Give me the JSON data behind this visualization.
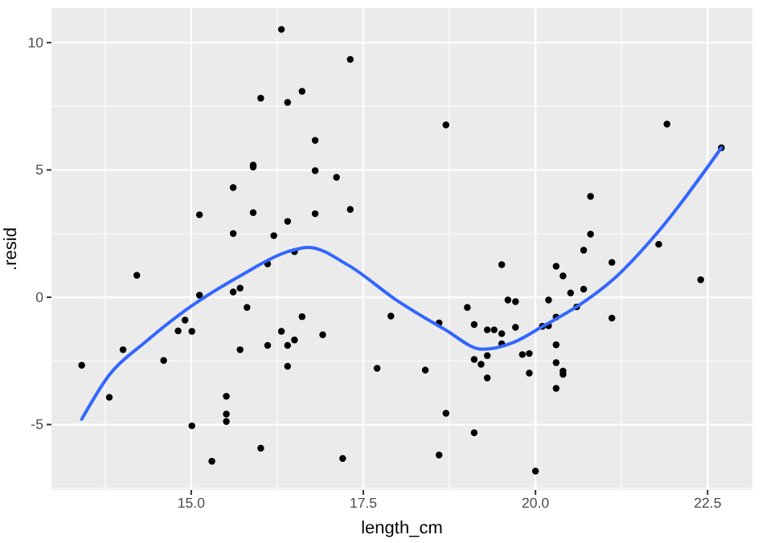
{
  "chart_data": {
    "type": "scatter",
    "xlabel": "length_cm",
    "ylabel": ".resid",
    "xlim": [
      12.97,
      23.15
    ],
    "ylim": [
      -7.57,
      11.36
    ],
    "xticks": [
      {
        "value": 15,
        "label": "15.0"
      },
      {
        "value": 17.5,
        "label": "17.5"
      },
      {
        "value": 20,
        "label": "20.0"
      },
      {
        "value": 22.5,
        "label": "22.5"
      }
    ],
    "yticks": [
      -5,
      0,
      5,
      10
    ],
    "grid": true,
    "series": [
      {
        "color": "#000000",
        "marker": "circle",
        "x": [
          13.41,
          13.81,
          14.01,
          14.21,
          14.6,
          14.81,
          14.91,
          15.01,
          15.01,
          15.12,
          15.12,
          15.3,
          15.51,
          15.51,
          15.51,
          15.61,
          15.61,
          15.61,
          15.71,
          15.71,
          15.81,
          15.9,
          15.9,
          15.9,
          16.01,
          16.01,
          16.11,
          16.11,
          16.2,
          16.31,
          16.31,
          16.4,
          16.4,
          16.4,
          16.4,
          16.5,
          16.5,
          16.61,
          16.61,
          16.8,
          16.8,
          16.8,
          16.91,
          17.11,
          17.2,
          17.31,
          17.31,
          17.7,
          17.9,
          18.4,
          18.6,
          18.6,
          18.7,
          18.7,
          19.01,
          19.11,
          19.11,
          19.11,
          19.21,
          19.3,
          19.3,
          19.3,
          19.4,
          19.51,
          19.51,
          19.51,
          19.6,
          19.71,
          19.71,
          19.81,
          19.91,
          19.91,
          20.0,
          20.1,
          20.19,
          20.19,
          20.3,
          20.3,
          20.3,
          20.3,
          20.3,
          20.4,
          20.4,
          20.4,
          20.51,
          20.6,
          20.7,
          20.7,
          20.8,
          20.8,
          21.11,
          21.11,
          21.79,
          21.91,
          22.4,
          22.7
        ],
        "values": [
          -2.67,
          -3.93,
          -2.06,
          0.86,
          -2.48,
          -1.32,
          -0.9,
          -1.34,
          -5.05,
          0.08,
          3.24,
          -6.44,
          -3.89,
          -4.59,
          -4.88,
          4.31,
          2.5,
          0.21,
          0.36,
          -2.06,
          -0.4,
          5.19,
          5.11,
          3.32,
          7.82,
          -5.93,
          1.31,
          -1.89,
          2.42,
          10.52,
          -1.34,
          7.65,
          2.98,
          -1.89,
          -2.71,
          1.79,
          -1.68,
          8.09,
          -0.76,
          6.16,
          4.97,
          3.28,
          -1.47,
          4.71,
          -6.33,
          9.34,
          3.45,
          -2.79,
          -0.74,
          -2.86,
          -1.01,
          -6.2,
          6.77,
          -4.56,
          -0.4,
          -1.07,
          -2.44,
          -5.32,
          -2.63,
          -1.28,
          -2.29,
          -3.17,
          -1.28,
          1.28,
          -1.43,
          -1.83,
          -0.11,
          -0.17,
          -1.18,
          -2.25,
          -2.21,
          -2.98,
          -6.83,
          -1.14,
          -0.11,
          -1.12,
          1.22,
          -0.78,
          -1.87,
          -2.57,
          -3.58,
          0.84,
          -2.9,
          -3.03,
          0.17,
          -0.38,
          1.85,
          0.32,
          3.96,
          2.48,
          1.37,
          -0.82,
          2.08,
          6.8,
          0.69,
          5.87
        ]
      },
      {
        "type": "line",
        "color": "#3366ff",
        "marker": "none",
        "line_style": "solid",
        "x": [
          13.41,
          13.81,
          14.32,
          14.91,
          15.71,
          16.4,
          16.7,
          17.28,
          17.98,
          18.68,
          19.23,
          19.7,
          20.1,
          20.63,
          21.1,
          21.8,
          22.7
        ],
        "values": [
          -4.79,
          -3.05,
          -1.79,
          -0.52,
          0.84,
          1.79,
          1.96,
          1.26,
          -0.11,
          -1.26,
          -2.04,
          -1.75,
          -1.15,
          -0.32,
          0.63,
          2.63,
          5.87
        ]
      }
    ]
  }
}
